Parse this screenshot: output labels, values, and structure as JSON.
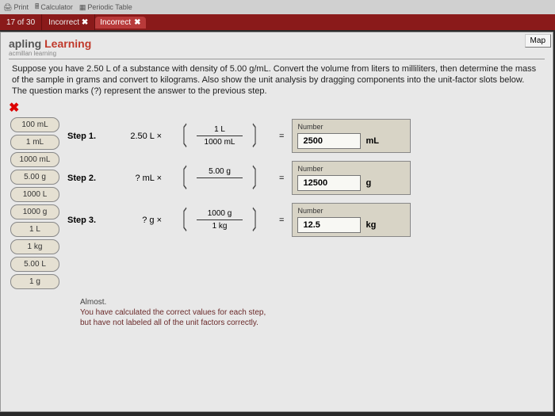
{
  "topbar": {
    "print": "Print",
    "calc": "Calculator",
    "periodic": "Periodic Table"
  },
  "status": {
    "progress": "17 of 30",
    "state1": "Incorrect",
    "state2": "Incorrect"
  },
  "map_label": "Map",
  "brand": {
    "part1": "apling ",
    "part2": "Learning",
    "sub": "acmillan learning"
  },
  "question": "Suppose you have 2.50 L of a substance with density of 5.00 g/mL. Convert the volume from liters to milliliters, then determine the mass of the sample in grams and convert to kilograms. Also show the unit analysis by dragging components into the unit-factor slots below. The question marks (?) represent the answer to the previous step.",
  "wrong_mark": "✖",
  "tiles": [
    "100 mL",
    "1 mL",
    "1000 mL",
    "5.00 g",
    "1000 L",
    "1000 g",
    "1 L",
    "1 kg",
    "5.00 L",
    "1 g"
  ],
  "steps": [
    {
      "label": "Step  1.",
      "start": "2.50  L ×",
      "num": "1 L",
      "den": "1000 mL",
      "res_label": "Number",
      "value": "2500",
      "unit": "mL"
    },
    {
      "label": "Step  2.",
      "start": "?   mL ×",
      "num": "5.00 g",
      "den": "",
      "res_label": "Number",
      "value": "12500",
      "unit": "g"
    },
    {
      "label": "Step  3.",
      "start": "?  g ×",
      "num": "1000 g",
      "den": "1 kg",
      "res_label": "Number",
      "value": "12.5",
      "unit": "kg"
    }
  ],
  "feedback": {
    "head": "Almost.",
    "body": "You have calculated the correct values for each step,\nbut have not labeled all of the unit factors correctly."
  }
}
